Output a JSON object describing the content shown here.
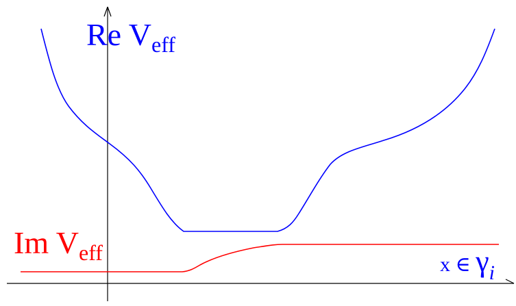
{
  "labels": {
    "re_prefix": "Re V",
    "re_sub": "eff",
    "im_prefix": "Im V",
    "im_sub": "eff",
    "x_axis_prefix": "x ∈ ",
    "x_axis_gamma": "γ",
    "x_axis_sub": "i"
  },
  "colors": {
    "axis": "#000000",
    "re_curve": "#0000ff",
    "im_curve": "#ff0000",
    "x_label": "#0000ff"
  }
}
